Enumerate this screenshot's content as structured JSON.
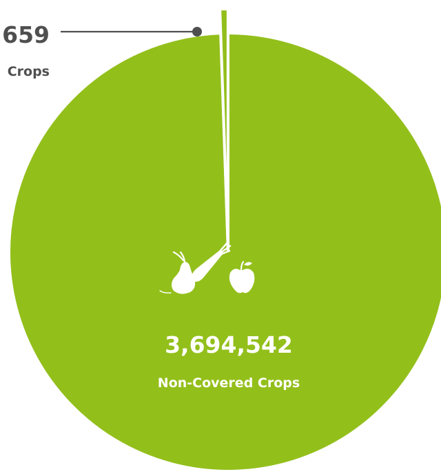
{
  "chart_data": {
    "type": "pie",
    "slices": [
      {
        "value_label": "659",
        "category_label": "Crops",
        "value": 659,
        "color": "#93bf1b"
      },
      {
        "value_label": "3,694,542",
        "category_label": "Non-Covered Crops",
        "value": 3694542,
        "color": "#93bf1b"
      }
    ],
    "separator_color": "#ffffff",
    "text_color_inside": "#ffffff",
    "text_color_outside": "#4f4f4f",
    "leader_color": "#4f4f4f",
    "center_icons": [
      "carrot-icon",
      "pear-icon",
      "apple-icon"
    ]
  }
}
